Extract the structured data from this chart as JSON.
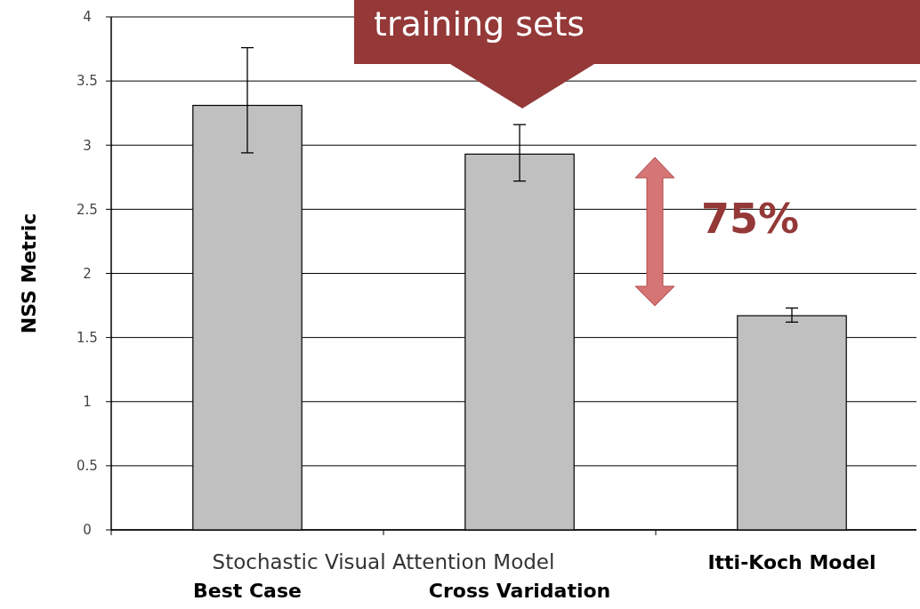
{
  "chart_data": {
    "type": "bar",
    "ylabel": "NSS Metric",
    "categories": [
      "Best Case",
      "Cross Varidation",
      "Itti-Koch Model"
    ],
    "values": [
      3.31,
      2.93,
      1.67
    ],
    "errors": [
      [
        2.94,
        3.76
      ],
      [
        2.72,
        3.16
      ],
      [
        1.62,
        1.73
      ]
    ],
    "color": "#c0c0c0",
    "ylim": [
      0,
      4
    ],
    "yticks": [
      0,
      0.5,
      1,
      1.5,
      2,
      2.5,
      3,
      3.5,
      4
    ],
    "grid": "y",
    "annotations": [
      "training sets",
      "Stochastic Visual Attention Model",
      "75%"
    ]
  }
}
